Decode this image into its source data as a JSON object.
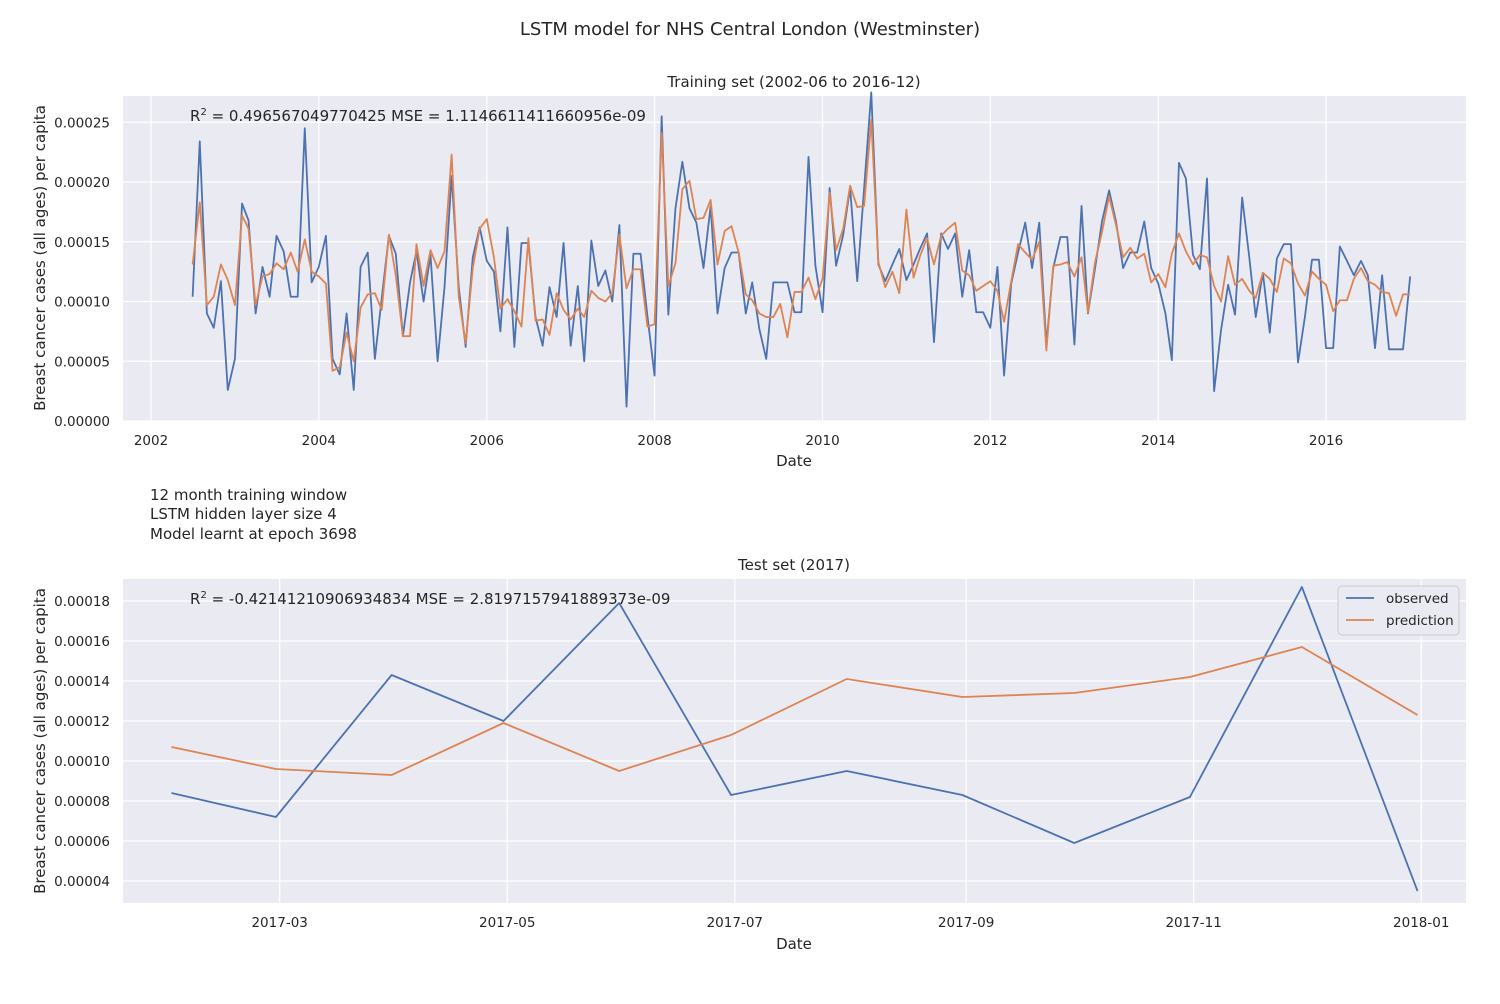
{
  "figure": {
    "title": "LSTM model for NHS Central London (Westminster)",
    "notes": [
      "12 month training window",
      "LSTM hidden layer size 4",
      "Model learnt at epoch 3698"
    ]
  },
  "colors": {
    "observed": "#4C72B0",
    "prediction": "#DD8452",
    "panel_bg": "#EAEAF2",
    "grid": "#FFFFFF"
  },
  "chart_data": [
    {
      "type": "line",
      "title": "Training set (2002-06 to 2016-12)",
      "xlabel": "Date",
      "ylabel": "Breast cancer cases (all ages) per capita",
      "stat": {
        "r2_label": "2",
        "text": " = 0.496567049770425  MSE = 1.1146611411660956e-09"
      },
      "xlim": [
        "2001-09-01",
        "2017-09-01"
      ],
      "ylim": [
        0,
        0.000272
      ],
      "x_ticks": [
        "2002",
        "2004",
        "2006",
        "2008",
        "2010",
        "2012",
        "2014",
        "2016"
      ],
      "y_ticks": [
        "0.00000",
        "0.00005",
        "0.00010",
        "0.00015",
        "0.00020",
        "0.00025"
      ],
      "grid": true,
      "x_start": "2002-07-01",
      "series": [
        {
          "key": "observed",
          "values": [
            0.000104,
            0.000234,
            9e-05,
            7.8e-05,
            0.000117,
            2.6e-05,
            5.2e-05,
            0.000182,
            0.000168,
            9e-05,
            0.000129,
            0.000104,
            0.000155,
            0.000142,
            0.000104,
            0.000104,
            0.000245,
            0.000116,
            0.000129,
            0.000155,
            5.2e-05,
            3.9e-05,
            9e-05,
            2.6e-05,
            0.000129,
            0.000141,
            5.2e-05,
            0.000103,
            0.000155,
            0.00014,
            7.1e-05,
            0.000116,
            0.000142,
            0.0001,
            0.000139,
            5e-05,
            0.000112,
            0.000205,
            0.000112,
            6.2e-05,
            0.000137,
            0.000162,
            0.000134,
            0.000125,
            7.5e-05,
            0.000162,
            6.2e-05,
            0.000149,
            0.000149,
            8.7e-05,
            6.3e-05,
            0.000112,
            8.7e-05,
            0.000149,
            6.3e-05,
            0.000113,
            5e-05,
            0.000151,
            0.000113,
            0.000126,
            0.0001,
            0.000164,
            1.2e-05,
            0.00014,
            0.00014,
            8.8e-05,
            3.8e-05,
            0.000255,
            8.9e-05,
            0.000178,
            0.000217,
            0.000178,
            0.000166,
            0.000128,
            0.00018,
            9e-05,
            0.000128,
            0.000141,
            0.000141,
            9e-05,
            0.000116,
            7.7e-05,
            5.2e-05,
            0.000116,
            0.000116,
            0.000116,
            9.1e-05,
            9.1e-05,
            0.000221,
            0.00013,
            9.1e-05,
            0.000195,
            0.00013,
            0.000156,
            0.000195,
            0.000117,
            0.000195,
            0.000275,
            0.000131,
            0.000117,
            0.000131,
            0.000144,
            0.000118,
            0.000131,
            0.000144,
            0.000157,
            6.6e-05,
            0.000157,
            0.000144,
            0.000157,
            0.000104,
            0.000143,
            9.1e-05,
            9.1e-05,
            7.8e-05,
            0.000129,
            3.8e-05,
            0.000115,
            0.000141,
            0.000166,
            0.000128,
            0.000166,
            6.4e-05,
            0.000128,
            0.000154,
            0.000154,
            6.4e-05,
            0.00018,
            9e-05,
            0.000128,
            0.000167,
            0.000193,
            0.000167,
            0.000128,
            0.000141,
            0.000141,
            0.000167,
            0.000128,
            0.000115,
            9e-05,
            5.1e-05,
            0.000216,
            0.000203,
            0.000139,
            0.000127,
            0.000203,
            2.5e-05,
            7.6e-05,
            0.000114,
            8.9e-05,
            0.000187,
            0.000137,
            8.7e-05,
            0.000124,
            7.4e-05,
            0.000136,
            0.000148,
            0.000148,
            4.9e-05,
            8.7e-05,
            0.000135,
            0.000135,
            6.1e-05,
            6.1e-05,
            0.000146,
            0.000134,
            0.000122,
            0.000134,
            0.000122,
            6.1e-05,
            0.000122,
            6e-05,
            6e-05,
            6e-05,
            0.000121
          ]
        },
        {
          "key": "prediction",
          "values": [
            0.000131,
            0.000183,
            9.7e-05,
            0.000104,
            0.000131,
            0.000118,
            9.7e-05,
            0.000172,
            0.000161,
            9.7e-05,
            0.000121,
            0.000123,
            0.000132,
            0.000127,
            0.000141,
            0.000125,
            0.000152,
            0.000125,
            0.000121,
            0.000115,
            4.2e-05,
            4.5e-05,
            7.4e-05,
            5e-05,
            9.5e-05,
            0.000106,
            0.000107,
            9.3e-05,
            0.000156,
            0.000122,
            7.1e-05,
            7.1e-05,
            0.000148,
            0.000113,
            0.000143,
            0.000128,
            0.000142,
            0.000223,
            0.000104,
            6.5e-05,
            0.000128,
            0.000161,
            0.000169,
            0.000137,
            9.4e-05,
            0.000102,
            9.2e-05,
            7.9e-05,
            0.000153,
            8.4e-05,
            8.5e-05,
            7.2e-05,
            0.000107,
            9.3e-05,
            8.5e-05,
            9.4e-05,
            8.7e-05,
            0.000109,
            0.000103,
            0.0001,
            0.000107,
            0.000156,
            0.000111,
            0.000127,
            0.000127,
            7.9e-05,
            8.1e-05,
            0.000241,
            0.000113,
            0.000132,
            0.000194,
            0.000201,
            0.000169,
            0.00017,
            0.000185,
            0.000131,
            0.000159,
            0.000163,
            0.000141,
            0.000106,
            0.000101,
            9e-05,
            8.7e-05,
            8.7e-05,
            9.8e-05,
            7e-05,
            0.000108,
            0.000108,
            0.00012,
            0.000102,
            0.000119,
            0.000191,
            0.000143,
            0.000161,
            0.000197,
            0.000179,
            0.00018,
            0.000252,
            0.000133,
            0.000112,
            0.000125,
            0.000107,
            0.000177,
            0.00012,
            0.000138,
            0.000153,
            0.000131,
            0.000155,
            0.000161,
            0.000166,
            0.000126,
            0.000122,
            0.000109,
            0.000113,
            0.000117,
            0.000109,
            8.3e-05,
            0.000117,
            0.000148,
            0.000141,
            0.000135,
            0.00015,
            5.9e-05,
            0.00013,
            0.000131,
            0.000133,
            0.000121,
            0.000137,
            9.1e-05,
            0.000133,
            0.000158,
            0.000188,
            0.000164,
            0.000137,
            0.000145,
            0.000136,
            0.00014,
            0.000116,
            0.000123,
            0.000112,
            0.00014,
            0.000157,
            0.000142,
            0.000131,
            0.000139,
            0.000137,
            0.000113,
            0.0001,
            0.000138,
            0.000114,
            0.000119,
            0.000109,
            0.000103,
            0.000124,
            0.000119,
            0.000108,
            0.000136,
            0.000132,
            0.000115,
            0.000105,
            0.000125,
            0.000119,
            0.000114,
            9.2e-05,
            0.000101,
            0.000101,
            0.000119,
            0.000128,
            0.000117,
            0.000114,
            0.000108,
            0.000107,
            8.8e-05,
            0.000106,
            0.000106
          ]
        }
      ]
    },
    {
      "type": "line",
      "title": "Test set (2017)",
      "xlabel": "Date",
      "ylabel": "Breast cancer cases (all ages) per capita",
      "stat": {
        "r2_label": "2",
        "text": " = -0.42141210906934834  MSE = 2.8197157941889373e-09"
      },
      "x": [
        "2017-01-31",
        "2017-02-28",
        "2017-03-31",
        "2017-04-30",
        "2017-05-31",
        "2017-06-30",
        "2017-07-31",
        "2017-08-31",
        "2017-09-30",
        "2017-10-31",
        "2017-11-30",
        "2017-12-31"
      ],
      "xlim": [
        "2017-01-18",
        "2018-01-13"
      ],
      "ylim": [
        2.9e-05,
        0.000191
      ],
      "x_ticks": [
        "2017-03",
        "2017-05",
        "2017-07",
        "2017-09",
        "2017-11",
        "2018-01"
      ],
      "y_ticks": [
        "0.00004",
        "0.00006",
        "0.00008",
        "0.00010",
        "0.00012",
        "0.00014",
        "0.00016",
        "0.00018"
      ],
      "grid": true,
      "legend": {
        "position": "upper right",
        "entries": [
          "observed",
          "prediction"
        ]
      },
      "series": [
        {
          "key": "observed",
          "name": "observed",
          "values": [
            8.4e-05,
            7.2e-05,
            0.000143,
            0.00012,
            0.000179,
            8.3e-05,
            9.5e-05,
            8.3e-05,
            5.9e-05,
            8.2e-05,
            0.000187,
            3.5e-05
          ]
        },
        {
          "key": "prediction",
          "name": "prediction",
          "values": [
            0.000107,
            9.6e-05,
            9.3e-05,
            0.000119,
            9.5e-05,
            0.000113,
            0.000141,
            0.000132,
            0.000134,
            0.000142,
            0.000157,
            0.000123
          ]
        }
      ]
    }
  ]
}
